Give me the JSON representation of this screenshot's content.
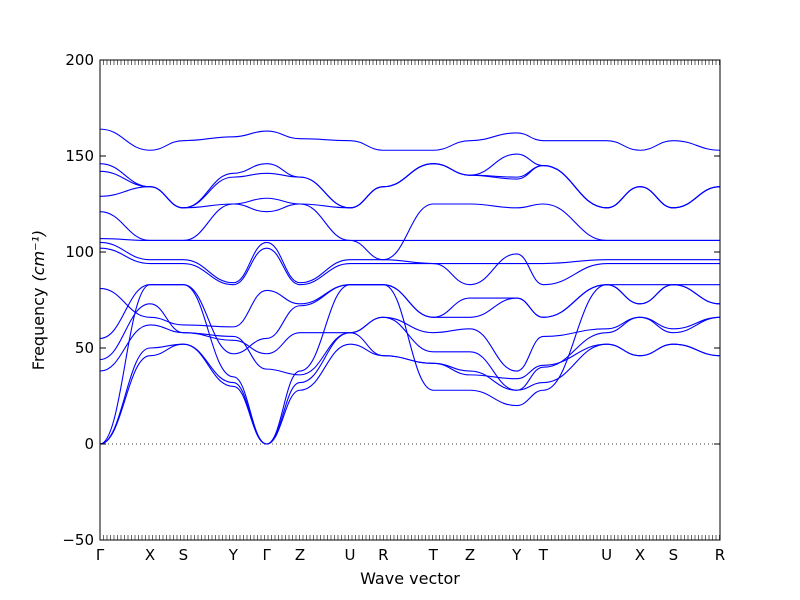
{
  "chart_data": {
    "type": "line",
    "title": "",
    "xlabel": "Wave vector",
    "ylabel": "Frequency",
    "ylabel_unit": "(cm⁻¹)",
    "ylim": [
      -50,
      200
    ],
    "yticks": [
      -50,
      0,
      50,
      100,
      150,
      200
    ],
    "xlim": [
      0,
      18.6
    ],
    "xticks": [
      {
        "label": "Γ",
        "x": 0
      },
      {
        "label": "X",
        "x": 1.5
      },
      {
        "label": "S",
        "x": 2.5
      },
      {
        "label": "Y",
        "x": 4.0
      },
      {
        "label": "Γ",
        "x": 5.0
      },
      {
        "label": "Z",
        "x": 6.0
      },
      {
        "label": "U",
        "x": 7.5
      },
      {
        "label": "R",
        "x": 8.5
      },
      {
        "label": "T",
        "x": 10.0
      },
      {
        "label": "Z",
        "x": 11.1
      },
      {
        "label": "Y",
        "x": 12.5
      },
      {
        "label": "T",
        "x": 13.3
      },
      {
        "label": "U",
        "x": 15.2
      },
      {
        "label": "X",
        "x": 16.2
      },
      {
        "label": "S",
        "x": 17.2
      },
      {
        "label": "R",
        "x": 18.6
      }
    ],
    "zero_line": true,
    "line_color": "#0000ff",
    "series": [
      {
        "x": [
          0,
          1.5,
          2.5,
          4,
          5,
          6,
          7.5,
          8.5,
          10,
          11.1,
          12.5,
          13.3,
          15.2,
          16.2,
          17.2,
          18.6
        ],
        "values": [
          0,
          46,
          52,
          30,
          0,
          28,
          52,
          46,
          42,
          36,
          34,
          41,
          52,
          46,
          52,
          46
        ]
      },
      {
        "x": [
          0,
          1.5,
          2.5,
          4,
          5,
          6,
          7.5,
          8.5,
          10,
          11.1,
          12.5,
          13.3,
          15.2,
          16.2,
          17.2,
          18.6
        ],
        "values": [
          0,
          50,
          52,
          32,
          0,
          32,
          58,
          46,
          42,
          38,
          28,
          32,
          52,
          46,
          52,
          46
        ]
      },
      {
        "x": [
          0,
          1.5,
          2.5,
          4,
          5,
          6,
          7.5,
          8.5,
          10,
          11.1,
          12.5,
          13.3,
          15.2,
          16.2,
          17.2,
          18.6
        ],
        "values": [
          0,
          83,
          83,
          35,
          0,
          38,
          83,
          83,
          28,
          28,
          20,
          28,
          83,
          73,
          83,
          73
        ]
      },
      {
        "x": [
          0,
          1.5,
          2.5,
          4,
          5,
          6,
          7.5,
          8.5,
          10,
          11.1,
          12.5,
          13.3,
          15.2,
          16.2,
          17.2,
          18.6
        ],
        "values": [
          38,
          62,
          58,
          56,
          39,
          36,
          58,
          66,
          48,
          48,
          28,
          40,
          58,
          66,
          58,
          66
        ]
      },
      {
        "x": [
          0,
          1.5,
          2.5,
          4,
          5,
          6,
          7.5,
          8.5,
          10,
          11.1,
          12.5,
          13.3,
          15.2,
          16.2,
          17.2,
          18.6
        ],
        "values": [
          44,
          73,
          58,
          54,
          47,
          58,
          58,
          66,
          58,
          60,
          38,
          56,
          60,
          66,
          60,
          66
        ]
      },
      {
        "x": [
          0,
          1.5,
          2.5,
          4,
          5,
          6,
          7.5,
          8.5,
          10,
          11.1,
          12.5,
          13.3,
          15.2,
          16.2,
          17.2,
          18.6
        ],
        "values": [
          55,
          83,
          83,
          47,
          55,
          72,
          83,
          83,
          66,
          76,
          76,
          66,
          83,
          73,
          83,
          73
        ]
      },
      {
        "x": [
          0,
          1.5,
          2.5,
          4,
          5,
          6,
          7.5,
          8.5,
          10,
          11.1,
          12.5,
          13.3,
          15.2,
          16.2,
          17.2,
          18.6
        ],
        "values": [
          81,
          66,
          62,
          61,
          80,
          73,
          83,
          83,
          66,
          66,
          76,
          66,
          83,
          83,
          83,
          83
        ]
      },
      {
        "x": [
          0,
          1.5,
          2.5,
          4,
          5,
          6,
          7.5,
          8.5,
          10,
          11.1,
          12.5,
          13.3,
          15.2,
          16.2,
          17.2,
          18.6
        ],
        "values": [
          102,
          94,
          94,
          83,
          102,
          83,
          94,
          94,
          94,
          83,
          99,
          83,
          94,
          94,
          94,
          94
        ]
      },
      {
        "x": [
          0,
          1.5,
          2.5,
          4,
          5,
          6,
          7.5,
          8.5,
          10,
          11.1,
          12.5,
          13.3,
          15.2,
          16.2,
          17.2,
          18.6
        ],
        "values": [
          105,
          96,
          96,
          84,
          105,
          84,
          96,
          96,
          94,
          94,
          94,
          94,
          96,
          96,
          96,
          96
        ]
      },
      {
        "x": [
          0,
          1.5,
          2.5,
          4,
          5,
          6,
          7.5,
          8.5,
          10,
          11.1,
          12.5,
          13.3,
          15.2,
          16.2,
          17.2,
          18.6
        ],
        "values": [
          107,
          106,
          106,
          106,
          106,
          106,
          106,
          106,
          106,
          106,
          106,
          106,
          106,
          106,
          106,
          106
        ]
      },
      {
        "x": [
          0,
          1.5,
          2.5,
          4,
          5,
          6,
          7.5,
          8.5,
          10,
          11.1,
          12.5,
          13.3,
          15.2,
          16.2,
          17.2,
          18.6
        ],
        "values": [
          121,
          106,
          106,
          125,
          121,
          125,
          106,
          96,
          125,
          125,
          123,
          125,
          106,
          106,
          106,
          106
        ]
      },
      {
        "x": [
          0,
          1.5,
          2.5,
          4,
          5,
          6,
          7.5,
          8.5,
          10,
          11.1,
          12.5,
          13.3,
          15.2,
          16.2,
          17.2,
          18.6
        ],
        "values": [
          129,
          134,
          123,
          125,
          128,
          125,
          123,
          134,
          146,
          140,
          138,
          145,
          123,
          134,
          123,
          134
        ]
      },
      {
        "x": [
          0,
          1.5,
          2.5,
          4,
          5,
          6,
          7.5,
          8.5,
          10,
          11.1,
          12.5,
          13.3,
          15.2,
          16.2,
          17.2,
          18.6
        ],
        "values": [
          142,
          134,
          123,
          139,
          141,
          139,
          123,
          134,
          146,
          140,
          139,
          145,
          123,
          134,
          123,
          134
        ]
      },
      {
        "x": [
          0,
          1.5,
          2.5,
          4,
          5,
          6,
          7.5,
          8.5,
          10,
          11.1,
          12.5,
          13.3,
          15.2,
          16.2,
          17.2,
          18.6
        ],
        "values": [
          146,
          134,
          123,
          141,
          146,
          139,
          123,
          134,
          146,
          140,
          151,
          145,
          123,
          134,
          123,
          134
        ]
      },
      {
        "x": [
          0,
          1.5,
          2.5,
          4,
          5,
          6,
          7.5,
          8.5,
          10,
          11.1,
          12.5,
          13.3,
          15.2,
          16.2,
          17.2,
          18.6
        ],
        "values": [
          164,
          153,
          158,
          160,
          163,
          159,
          158,
          153,
          153,
          158,
          162,
          158,
          158,
          153,
          158,
          153
        ]
      }
    ]
  }
}
